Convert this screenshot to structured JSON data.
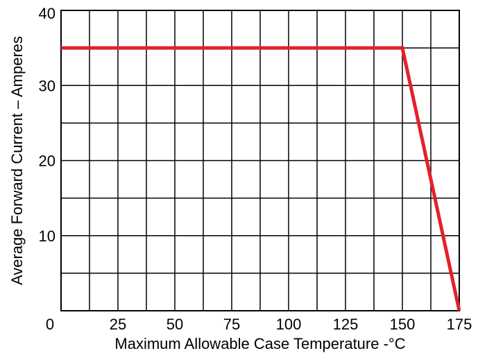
{
  "chart_data": {
    "type": "line",
    "title": "",
    "xlabel": "Maximum Allowable Case Temperature -°C",
    "ylabel": "Average Forward Current – Amperes",
    "xlim": [
      0,
      175
    ],
    "ylim": [
      0,
      40
    ],
    "x_ticks": [
      0,
      25,
      50,
      75,
      100,
      125,
      150,
      175
    ],
    "x_tick_labels": [
      "0",
      "25",
      "50",
      "75",
      "100",
      "125",
      "150",
      "175"
    ],
    "y_ticks": [
      10,
      20,
      30,
      40
    ],
    "y_tick_labels": [
      "10",
      "20",
      "30",
      "40"
    ],
    "x_grid_step": 12.5,
    "y_grid_step": 5,
    "grid": true,
    "legend": "none",
    "series": [
      {
        "color": "#e5202a",
        "x": [
          0,
          150,
          175
        ],
        "y": [
          35,
          35,
          0
        ]
      }
    ]
  }
}
